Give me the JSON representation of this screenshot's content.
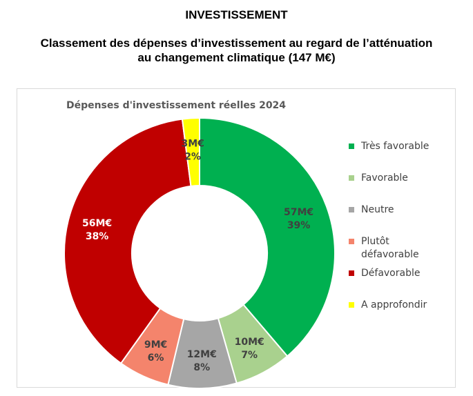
{
  "header": {
    "title": "INVESTISSEMENT",
    "subtitle_line1": "Classement des dépenses d’investissement au regard de l’atténuation",
    "subtitle_line2": "au changement climatique (147 M€)"
  },
  "chart_data": {
    "type": "pie",
    "title": "Dépenses d'investissement réelles 2024",
    "unit": "M€",
    "categories": [
      "Très favorable",
      "Favorable",
      "Neutre",
      "Plutôt\ndéfavorable",
      "Défavorable",
      "A approfondir"
    ],
    "values": [
      57,
      10,
      12,
      9,
      56,
      3
    ],
    "percent_labels": [
      "39%",
      "7%",
      "8%",
      "6%",
      "38%",
      "2%"
    ],
    "value_labels": [
      "57M€",
      "10M€",
      "12M€",
      "9M€",
      "56M€",
      "3M€"
    ],
    "colors": [
      "#00b050",
      "#a9d18e",
      "#a6a6a6",
      "#f4846c",
      "#c00000",
      "#ffff00"
    ],
    "label_colors": [
      "#404040",
      "#404040",
      "#404040",
      "#404040",
      "#ffffff",
      "#404040"
    ],
    "legend_position": "right",
    "hole": "donut"
  }
}
